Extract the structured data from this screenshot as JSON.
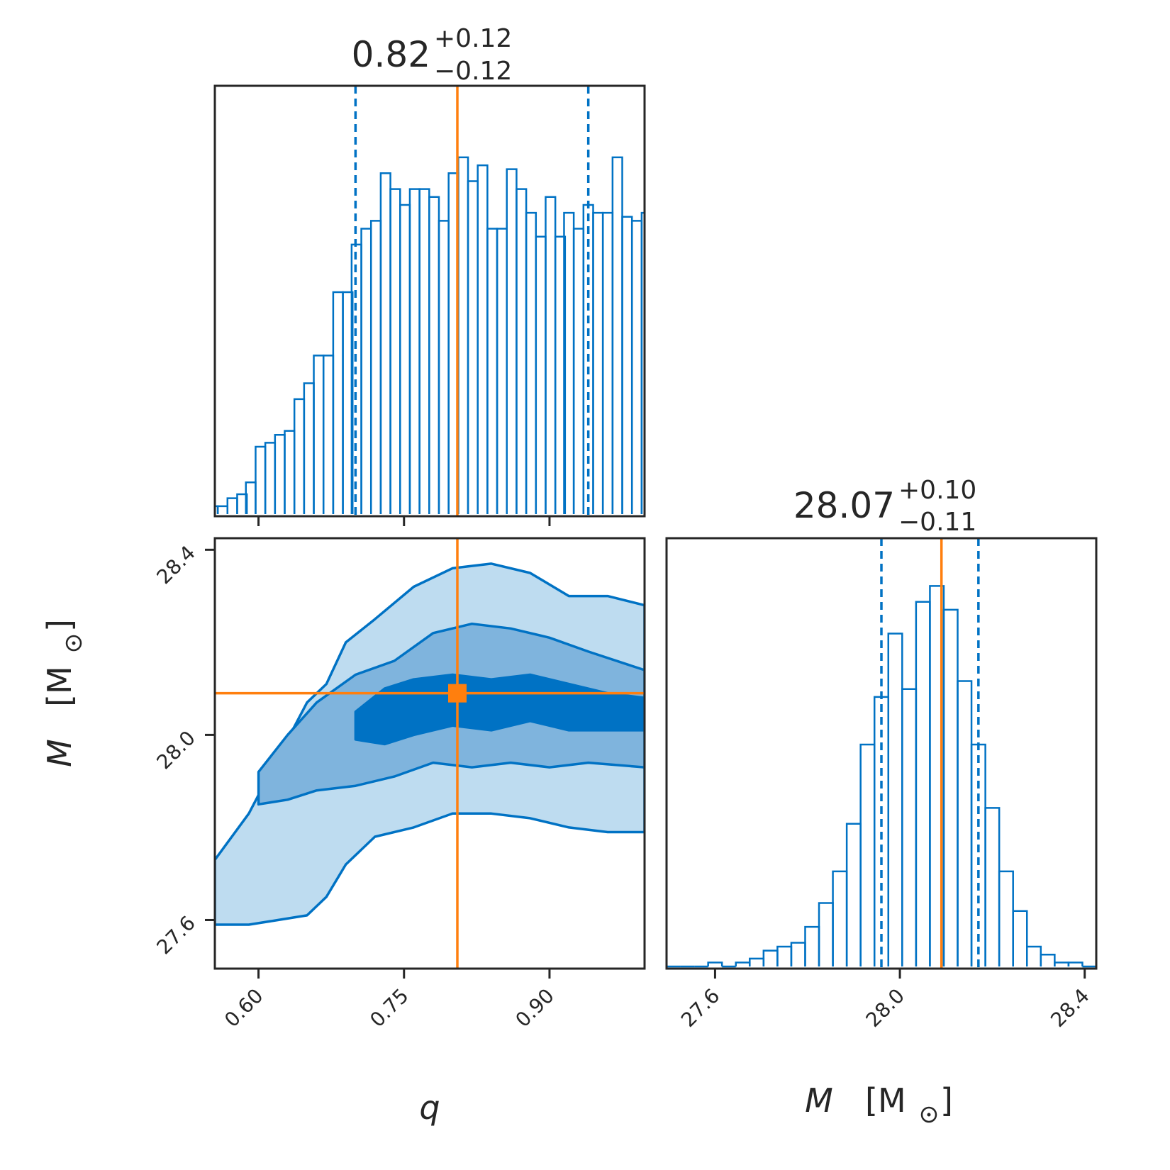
{
  "colors": {
    "hist": "#0072c4",
    "truth": "#ff7f0e",
    "frame": "#262626",
    "fill_outer": "#bedcf0",
    "fill_mid": "#7fb4dd",
    "fill_inner": "#0072c4"
  },
  "titles": {
    "q": {
      "median": "0.82",
      "plus": "+0.12",
      "minus": "−0.12"
    },
    "M": {
      "median": "28.07",
      "plus": "+0.10",
      "minus": "−0.11"
    }
  },
  "labels": {
    "q_var": "q",
    "M_var": "M",
    "M_unit_open": "[M",
    "M_unit_close": "]"
  },
  "chart_data": [
    {
      "type": "histogram",
      "name_note": "marginal of q",
      "x": [
        0.553,
        0.563,
        0.573,
        0.583,
        0.592,
        0.602,
        0.612,
        0.622,
        0.632,
        0.642,
        0.652,
        0.662,
        0.672,
        0.682,
        0.692,
        0.701,
        0.711,
        0.721,
        0.731,
        0.741,
        0.751,
        0.761,
        0.771,
        0.781,
        0.791,
        0.801,
        0.811,
        0.821,
        0.831,
        0.841,
        0.851,
        0.861,
        0.871,
        0.881,
        0.891,
        0.901,
        0.911,
        0.92,
        0.93,
        0.94,
        0.95,
        0.96,
        0.97,
        0.98,
        0.99,
        1.0
      ],
      "values": [
        0.02,
        0.02,
        0.04,
        0.05,
        0.08,
        0.17,
        0.18,
        0.2,
        0.21,
        0.29,
        0.33,
        0.4,
        0.4,
        0.56,
        0.56,
        0.68,
        0.72,
        0.74,
        0.86,
        0.82,
        0.78,
        0.82,
        0.82,
        0.8,
        0.74,
        0.86,
        0.9,
        0.84,
        0.88,
        0.72,
        0.72,
        0.87,
        0.82,
        0.76,
        0.7,
        0.8,
        0.7,
        0.76,
        0.72,
        0.78,
        0.76,
        0.76,
        0.9,
        0.75,
        0.74,
        0.76
      ],
      "xlim": [
        0.555,
        0.998
      ],
      "ticks": [
        "0.60",
        "0.75",
        "0.90"
      ],
      "quantiles": [
        0.7,
        0.94
      ],
      "truth": 0.805
    },
    {
      "type": "histogram",
      "name_note": "marginal of M",
      "x": [
        27.51,
        27.54,
        27.57,
        27.6,
        27.63,
        27.66,
        27.69,
        27.72,
        27.75,
        27.78,
        27.81,
        27.84,
        27.87,
        27.9,
        27.93,
        27.96,
        27.99,
        28.02,
        28.05,
        28.08,
        28.11,
        28.14,
        28.17,
        28.2,
        28.23,
        28.26,
        28.29,
        28.32,
        28.35,
        28.38,
        28.41
      ],
      "values": [
        0.0,
        0.0,
        0.0,
        0.01,
        0.0,
        0.01,
        0.02,
        0.04,
        0.05,
        0.06,
        0.1,
        0.16,
        0.24,
        0.36,
        0.56,
        0.68,
        0.84,
        0.7,
        0.92,
        0.96,
        0.9,
        0.72,
        0.56,
        0.4,
        0.24,
        0.14,
        0.05,
        0.03,
        0.01,
        0.01,
        0.0
      ],
      "xlim": [
        27.495,
        28.425
      ],
      "ticks": [
        "27.6",
        "28.0",
        "28.4"
      ],
      "quantiles": [
        27.96,
        28.17
      ],
      "truth": 28.09
    },
    {
      "type": "contour",
      "name_note": "joint q vs M",
      "xlim": [
        0.555,
        0.998
      ],
      "ylim": [
        27.495,
        28.425
      ],
      "xticks": [
        "0.60",
        "0.75",
        "0.90"
      ],
      "yticks": [
        "27.6",
        "28.0",
        "28.4"
      ],
      "truth": {
        "q": 0.805,
        "M": 28.09
      },
      "levels": [
        {
          "q": [
            0.555,
            0.59,
            0.62,
            0.65,
            0.67,
            0.69,
            0.72,
            0.76,
            0.8,
            0.84,
            0.88,
            0.92,
            0.96,
            0.998
          ],
          "M_upper": [
            27.73,
            27.83,
            27.95,
            28.07,
            28.11,
            28.2,
            28.25,
            28.32,
            28.36,
            28.37,
            28.35,
            28.3,
            28.3,
            28.28
          ],
          "M_lower": [
            27.59,
            27.59,
            27.6,
            27.61,
            27.65,
            27.72,
            27.78,
            27.8,
            27.83,
            27.83,
            27.82,
            27.8,
            27.79,
            27.79
          ]
        },
        {
          "q": [
            0.6,
            0.63,
            0.66,
            0.7,
            0.74,
            0.78,
            0.82,
            0.86,
            0.9,
            0.94,
            0.998
          ],
          "M_upper": [
            27.92,
            28.0,
            28.07,
            28.13,
            28.16,
            28.22,
            28.24,
            28.23,
            28.21,
            28.18,
            28.14
          ],
          "M_lower": [
            27.85,
            27.86,
            27.88,
            27.89,
            27.91,
            27.94,
            27.93,
            27.94,
            27.93,
            27.94,
            27.93
          ]
        },
        {
          "q": [
            0.7,
            0.73,
            0.76,
            0.8,
            0.84,
            0.88,
            0.92,
            0.96,
            0.998
          ],
          "M_upper": [
            28.05,
            28.1,
            28.12,
            28.13,
            28.12,
            28.13,
            28.11,
            28.09,
            28.08
          ],
          "M_lower": [
            27.99,
            27.98,
            28.0,
            28.02,
            28.01,
            28.03,
            28.01,
            28.01,
            28.01
          ]
        }
      ]
    }
  ]
}
